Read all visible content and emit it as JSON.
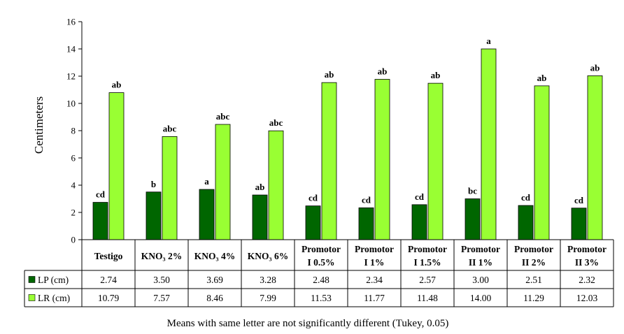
{
  "chart_data": {
    "type": "bar",
    "ylabel": "Centimeters",
    "ylim": [
      0,
      16
    ],
    "yticks": [
      "0",
      "2",
      "4",
      "6",
      "8",
      "10",
      "12",
      "14",
      "16"
    ],
    "categories": [
      [
        "Testigo"
      ],
      [
        "KNO₃ 2%"
      ],
      [
        "KNO₃ 4%"
      ],
      [
        "KNO₃ 6%"
      ],
      [
        "Promotor",
        "I 0.5%"
      ],
      [
        "Promotor",
        "I 1%"
      ],
      [
        "Promotor",
        "I 1.5%"
      ],
      [
        "Promotor",
        "II 1%"
      ],
      [
        "Promotor",
        "II 2%"
      ],
      [
        "Promotor",
        "II 3%"
      ]
    ],
    "series": [
      {
        "name": "LP (cm)",
        "color": "#006600",
        "values": [
          2.74,
          3.5,
          3.69,
          3.28,
          2.48,
          2.34,
          2.57,
          3.0,
          2.51,
          2.32
        ],
        "value_labels": [
          "2.74",
          "3.50",
          "3.69",
          "3.28",
          "2.48",
          "2.34",
          "2.57",
          "3.00",
          "2.51",
          "2.32"
        ],
        "letters": [
          "cd",
          "b",
          "a",
          "ab",
          "cd",
          "cd",
          "cd",
          "bc",
          "cd",
          "cd"
        ]
      },
      {
        "name": "LR (cm)",
        "color": "#99FF33",
        "values": [
          10.79,
          7.57,
          8.46,
          7.99,
          11.53,
          11.77,
          11.48,
          14.0,
          11.29,
          12.03
        ],
        "value_labels": [
          "10.79",
          "7.57",
          "8.46",
          "7.99",
          "11.53",
          "11.77",
          "11.48",
          "14.00",
          "11.29",
          "12.03"
        ],
        "letters": [
          "ab",
          "abc",
          "abc",
          "abc",
          "ab",
          "ab",
          "ab",
          "a",
          "ab",
          "ab"
        ]
      }
    ],
    "footnote": "Means with same letter are not significantly different (Tukey, 0.05)"
  }
}
